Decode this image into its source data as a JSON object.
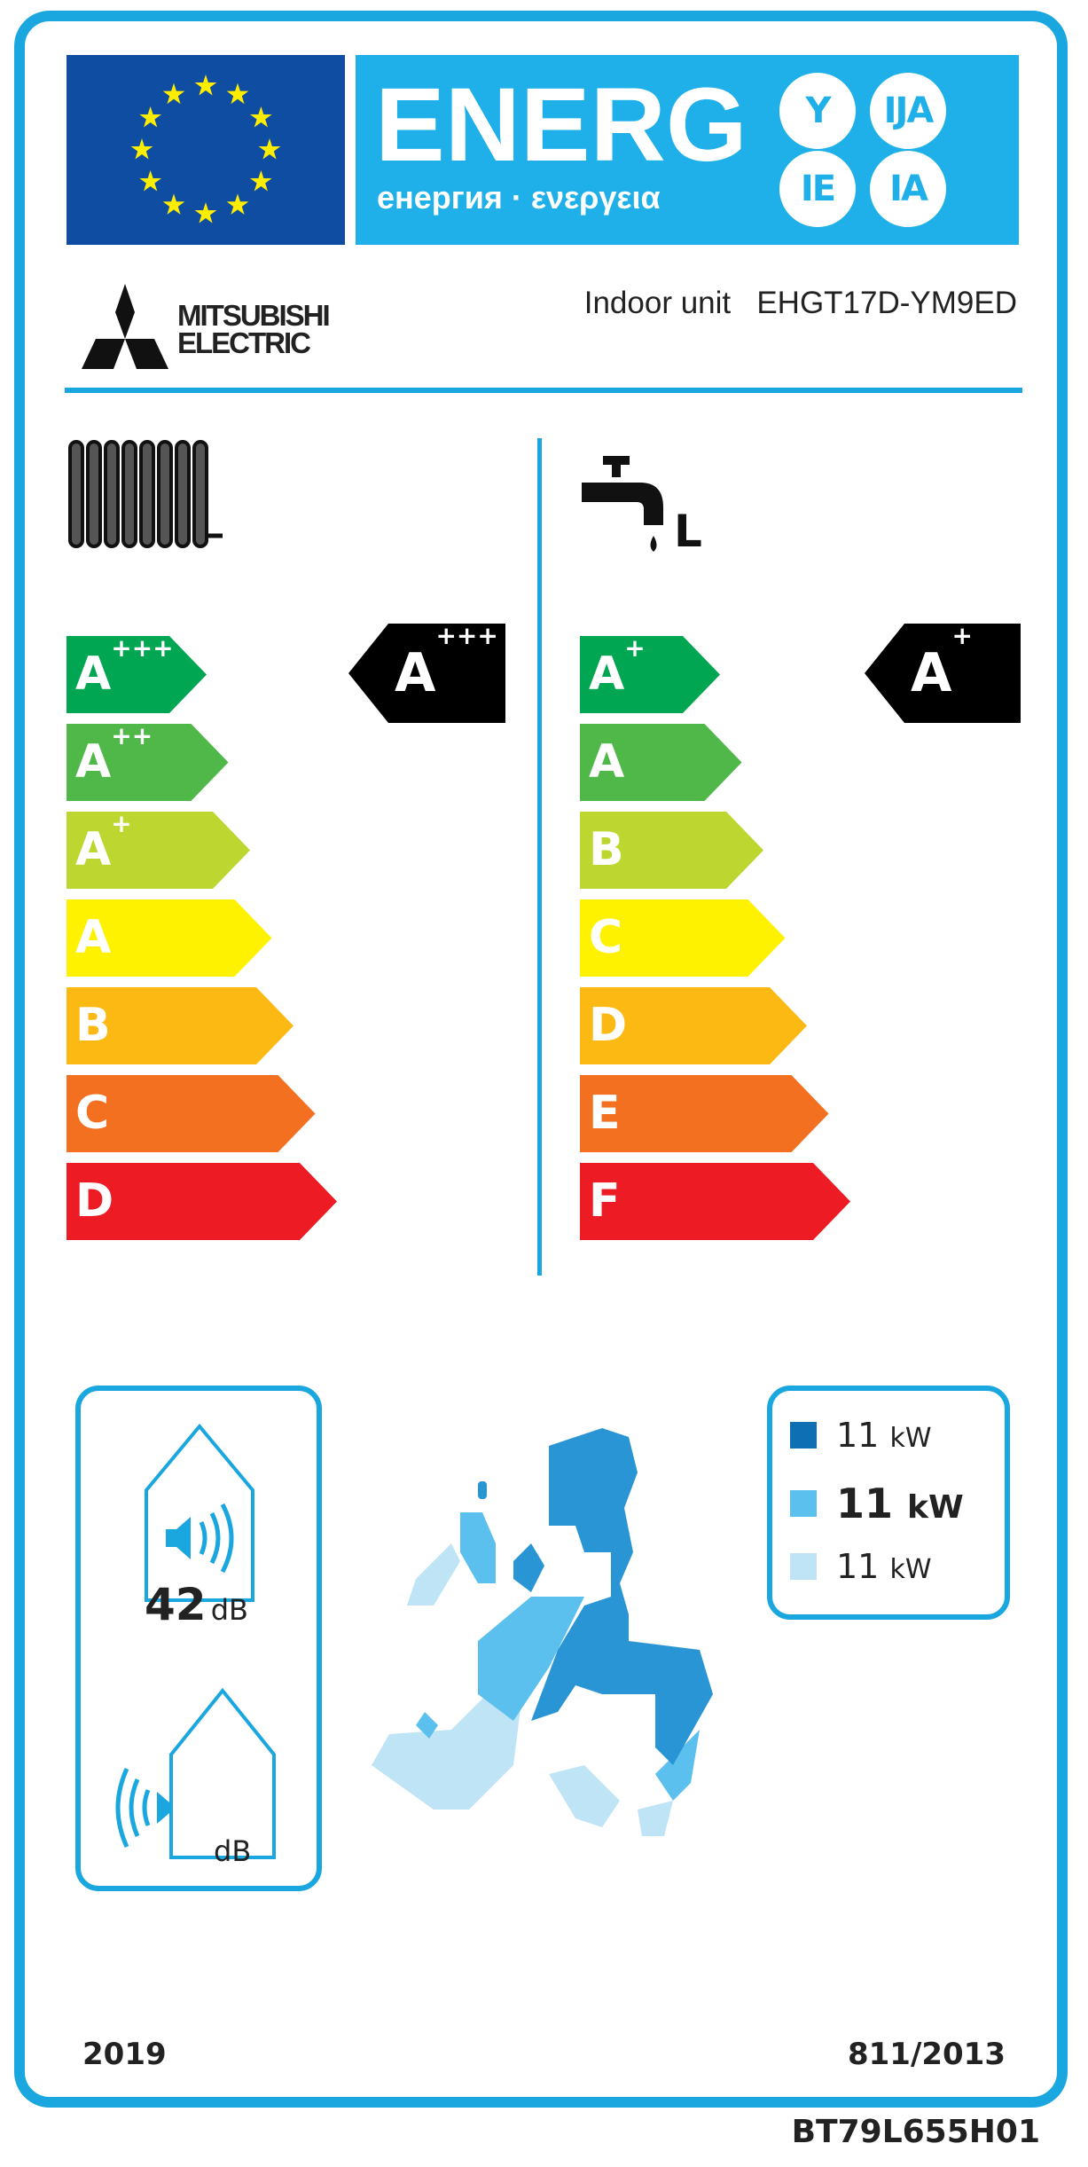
{
  "header": {
    "title": "ENERG",
    "subtitle": "енергия · ενεργεια",
    "suffixes": [
      "Y",
      "IJA",
      "IE",
      "IA"
    ]
  },
  "supplier": {
    "brand_line1": "MITSUBISHI",
    "brand_line2": "ELECTRIC",
    "unit_label": "Indoor unit",
    "model": "EHGT17D-YM9ED"
  },
  "space_heating": {
    "icon": "radiator-icon",
    "scale": [
      {
        "base": "A",
        "plus": "+++",
        "color": "#00a651"
      },
      {
        "base": "A",
        "plus": "++",
        "color": "#50b848"
      },
      {
        "base": "A",
        "plus": "+",
        "color": "#bed630"
      },
      {
        "base": "A",
        "plus": "",
        "color": "#fff200"
      },
      {
        "base": "B",
        "plus": "",
        "color": "#fdb913"
      },
      {
        "base": "C",
        "plus": "",
        "color": "#f37021"
      },
      {
        "base": "D",
        "plus": "",
        "color": "#ed1c24"
      }
    ],
    "rating": {
      "base": "A",
      "plus": "+++"
    }
  },
  "water_heating": {
    "icon": "tap-icon",
    "profile": "L",
    "scale": [
      {
        "base": "A",
        "plus": "+",
        "color": "#00a651"
      },
      {
        "base": "A",
        "plus": "",
        "color": "#50b848"
      },
      {
        "base": "B",
        "plus": "",
        "color": "#bed630"
      },
      {
        "base": "C",
        "plus": "",
        "color": "#fff200"
      },
      {
        "base": "D",
        "plus": "",
        "color": "#fdb913"
      },
      {
        "base": "E",
        "plus": "",
        "color": "#f37021"
      },
      {
        "base": "F",
        "plus": "",
        "color": "#ed1c24"
      }
    ],
    "rating": {
      "base": "A",
      "plus": "+"
    }
  },
  "noise": {
    "indoor_value": "42",
    "indoor_unit": "dB",
    "outdoor_value": "",
    "outdoor_unit": "dB"
  },
  "heat_output": {
    "colder": {
      "value": "11",
      "unit": "kW",
      "color": "#0f6fb5"
    },
    "average": {
      "value": "11",
      "unit": "kW",
      "color": "#5bc0ed"
    },
    "warmer": {
      "value": "11",
      "unit": "kW",
      "color": "#bfe4f6"
    }
  },
  "footer": {
    "year": "2019",
    "regulation": "811/2013",
    "doc_code": "BT79L655H01"
  },
  "colors": {
    "label_blue": "#1aa7e0",
    "eu_blue": "#0f4da2",
    "star_yellow": "#ffed00"
  }
}
